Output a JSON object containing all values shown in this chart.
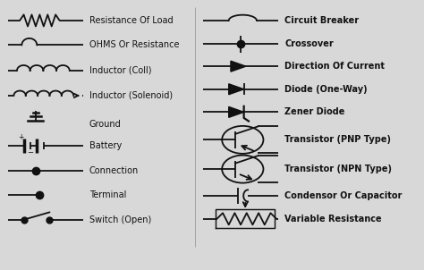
{
  "background_color": "#d8d8d8",
  "text_color": "#111111",
  "line_color": "#111111",
  "left_labels": [
    "Resistance Of Load",
    "OHMS Or Resistance",
    "Inductor (Coll)",
    "Inductor (Solenoid)",
    "Ground",
    "Battery",
    "Connection",
    "Terminal",
    "Switch (Open)"
  ],
  "right_labels": [
    "Circuit Breaker",
    "Crossover",
    "Direction Of Current",
    "Diode (One-Way)",
    "Zener Diode",
    "Transistor (PNP Type)",
    "Transistor (NPN Type)",
    "Condensor Or Capacitor",
    "Variable Resistance"
  ],
  "font_size": 7.0,
  "lw": 1.3
}
